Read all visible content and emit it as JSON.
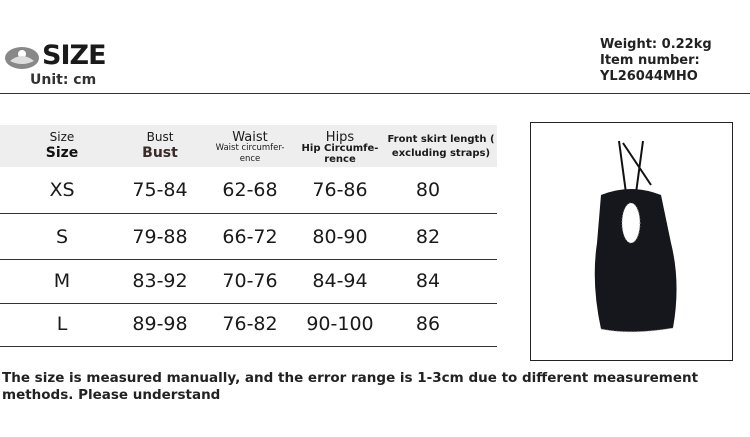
{
  "header": {
    "title": "SIZE",
    "unit": "Unit: cm",
    "weight": "Weight: 0.22kg",
    "item_number_label": "Item number:",
    "item_number": "YL26044MHO"
  },
  "table": {
    "columns": [
      {
        "top": "Size",
        "bottom": "Size"
      },
      {
        "top": "Bust",
        "bottom": "Bust"
      },
      {
        "top": "Waist",
        "bottom": "Waist circumfer-ence"
      },
      {
        "top": "Hips",
        "bottom": "Hip Circumfe-rence"
      },
      {
        "top": "Front skirt length (",
        "bottom": "excluding straps)"
      }
    ],
    "rows": [
      [
        "XS",
        "75-84",
        "62-68",
        "76-86",
        "80"
      ],
      [
        "S",
        "79-88",
        "66-72",
        "80-90",
        "82"
      ],
      [
        "M",
        "83-92",
        "70-76",
        "84-94",
        "84"
      ],
      [
        "L",
        "89-98",
        "76-82",
        "90-100",
        "86"
      ]
    ]
  },
  "note": "The size is measured manually, and the error range is 1-3cm due to different measurement methods. Please understand"
}
